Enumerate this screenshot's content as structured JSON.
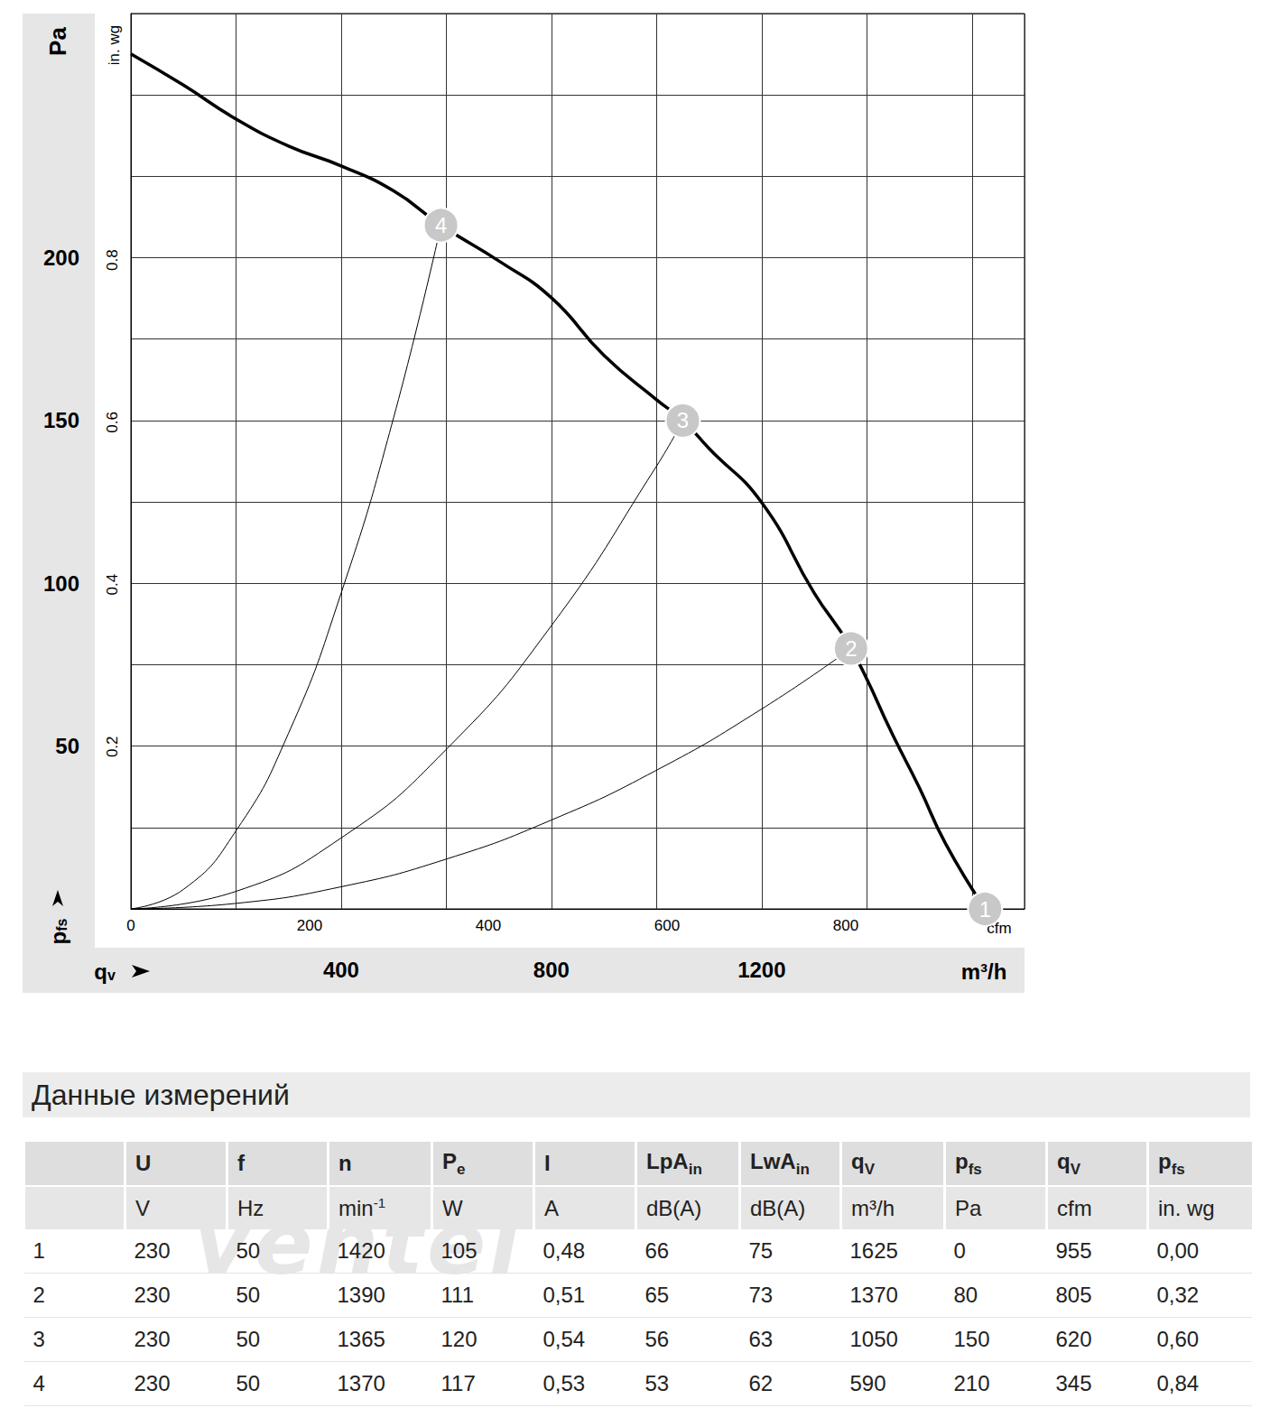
{
  "chart_data": {
    "type": "line",
    "x_title": "m³/h",
    "y_title": "Pa",
    "x_symbol": {
      "text": "q",
      "sub": "v"
    },
    "y_symbol": {
      "text": "p",
      "sub": "fs"
    },
    "xlim": [
      0,
      1700
    ],
    "xticks": [
      400,
      800,
      1200
    ],
    "xgrid": [
      0,
      200,
      400,
      600,
      800,
      1000,
      1200,
      1400,
      1600
    ],
    "ylim": [
      0,
      275
    ],
    "yticks": [
      50,
      100,
      150,
      200
    ],
    "ygrid": [
      0,
      25,
      50,
      75,
      100,
      125,
      150,
      175,
      200,
      225,
      250,
      275
    ],
    "x2_title": "cfm",
    "x2lim": [
      0,
      1000
    ],
    "x2ticks": [
      0,
      200,
      400,
      600,
      800
    ],
    "y2_title": "in. wg",
    "y2lim": [
      0,
      1.104
    ],
    "y2ticks": [
      0.2,
      0.4,
      0.6,
      0.8
    ],
    "grid": true,
    "series": [
      {
        "color": "#000000",
        "line_style": "bold",
        "x": [
          0,
          100,
          200,
          300,
          400,
          500,
          590,
          700,
          800,
          900,
          1000,
          1050,
          1100,
          1200,
          1300,
          1370,
          1450,
          1500,
          1550,
          1625
        ],
        "values": [
          262.6,
          253,
          242.6,
          234.3,
          228.2,
          220.5,
          210,
          199,
          187.7,
          170,
          156.4,
          150,
          141.4,
          124.8,
          97,
          80,
          53.2,
          37.2,
          20,
          0
        ]
      },
      {
        "color": "#000000",
        "line_style": "solid",
        "x": [
          0,
          100,
          200,
          300,
          400,
          500,
          590
        ],
        "values": [
          0,
          6,
          24,
          54,
          97,
          151,
          210
        ]
      },
      {
        "color": "#000000",
        "line_style": "solid",
        "x": [
          0,
          200,
          400,
          600,
          800,
          1000,
          1050
        ],
        "values": [
          0,
          5.4,
          21.8,
          49,
          87,
          136,
          150
        ]
      },
      {
        "color": "#000000",
        "line_style": "solid",
        "x": [
          0,
          200,
          400,
          600,
          800,
          1000,
          1200,
          1370
        ],
        "values": [
          0,
          1.7,
          6.8,
          15.3,
          27.3,
          42.6,
          61.4,
          80
        ]
      }
    ],
    "points": {
      "labels": [
        "1",
        "2",
        "3",
        "4"
      ],
      "x": [
        1625,
        1370,
        1050,
        590
      ],
      "values": [
        0,
        80,
        150,
        210
      ],
      "color": "#c8c8c8",
      "marker": "circle"
    }
  },
  "table": {
    "title": "Данные измерений",
    "watermark": "ventel",
    "header": [
      [
        null,
        "U",
        "f",
        "n",
        {
          "text": "P",
          "sub": "e"
        },
        "I",
        {
          "text": "LpA",
          "sub": "in"
        },
        {
          "text": "LwA",
          "sub": "in"
        },
        {
          "text": "q",
          "sub": "V"
        },
        {
          "text": "p",
          "sub": "fs"
        },
        {
          "text": "q",
          "sub": "V"
        },
        {
          "text": "p",
          "sub": "fs"
        }
      ],
      [
        null,
        "V",
        "Hz",
        {
          "text": "min",
          "sup": "-1"
        },
        "W",
        "A",
        "dB(A)",
        "dB(A)",
        "m³/h",
        "Pa",
        "cfm",
        "in. wg"
      ]
    ],
    "rows": [
      [
        "1",
        "230",
        "50",
        "1420",
        "105",
        "0,48",
        "66",
        "75",
        "1625",
        "0",
        "955",
        "0,00"
      ],
      [
        "2",
        "230",
        "50",
        "1390",
        "111",
        "0,51",
        "65",
        "73",
        "1370",
        "80",
        "805",
        "0,32"
      ],
      [
        "3",
        "230",
        "50",
        "1365",
        "120",
        "0,54",
        "56",
        "63",
        "1050",
        "150",
        "620",
        "0,60"
      ],
      [
        "4",
        "230",
        "50",
        "1370",
        "117",
        "0,53",
        "53",
        "62",
        "590",
        "210",
        "345",
        "0,84"
      ]
    ]
  }
}
